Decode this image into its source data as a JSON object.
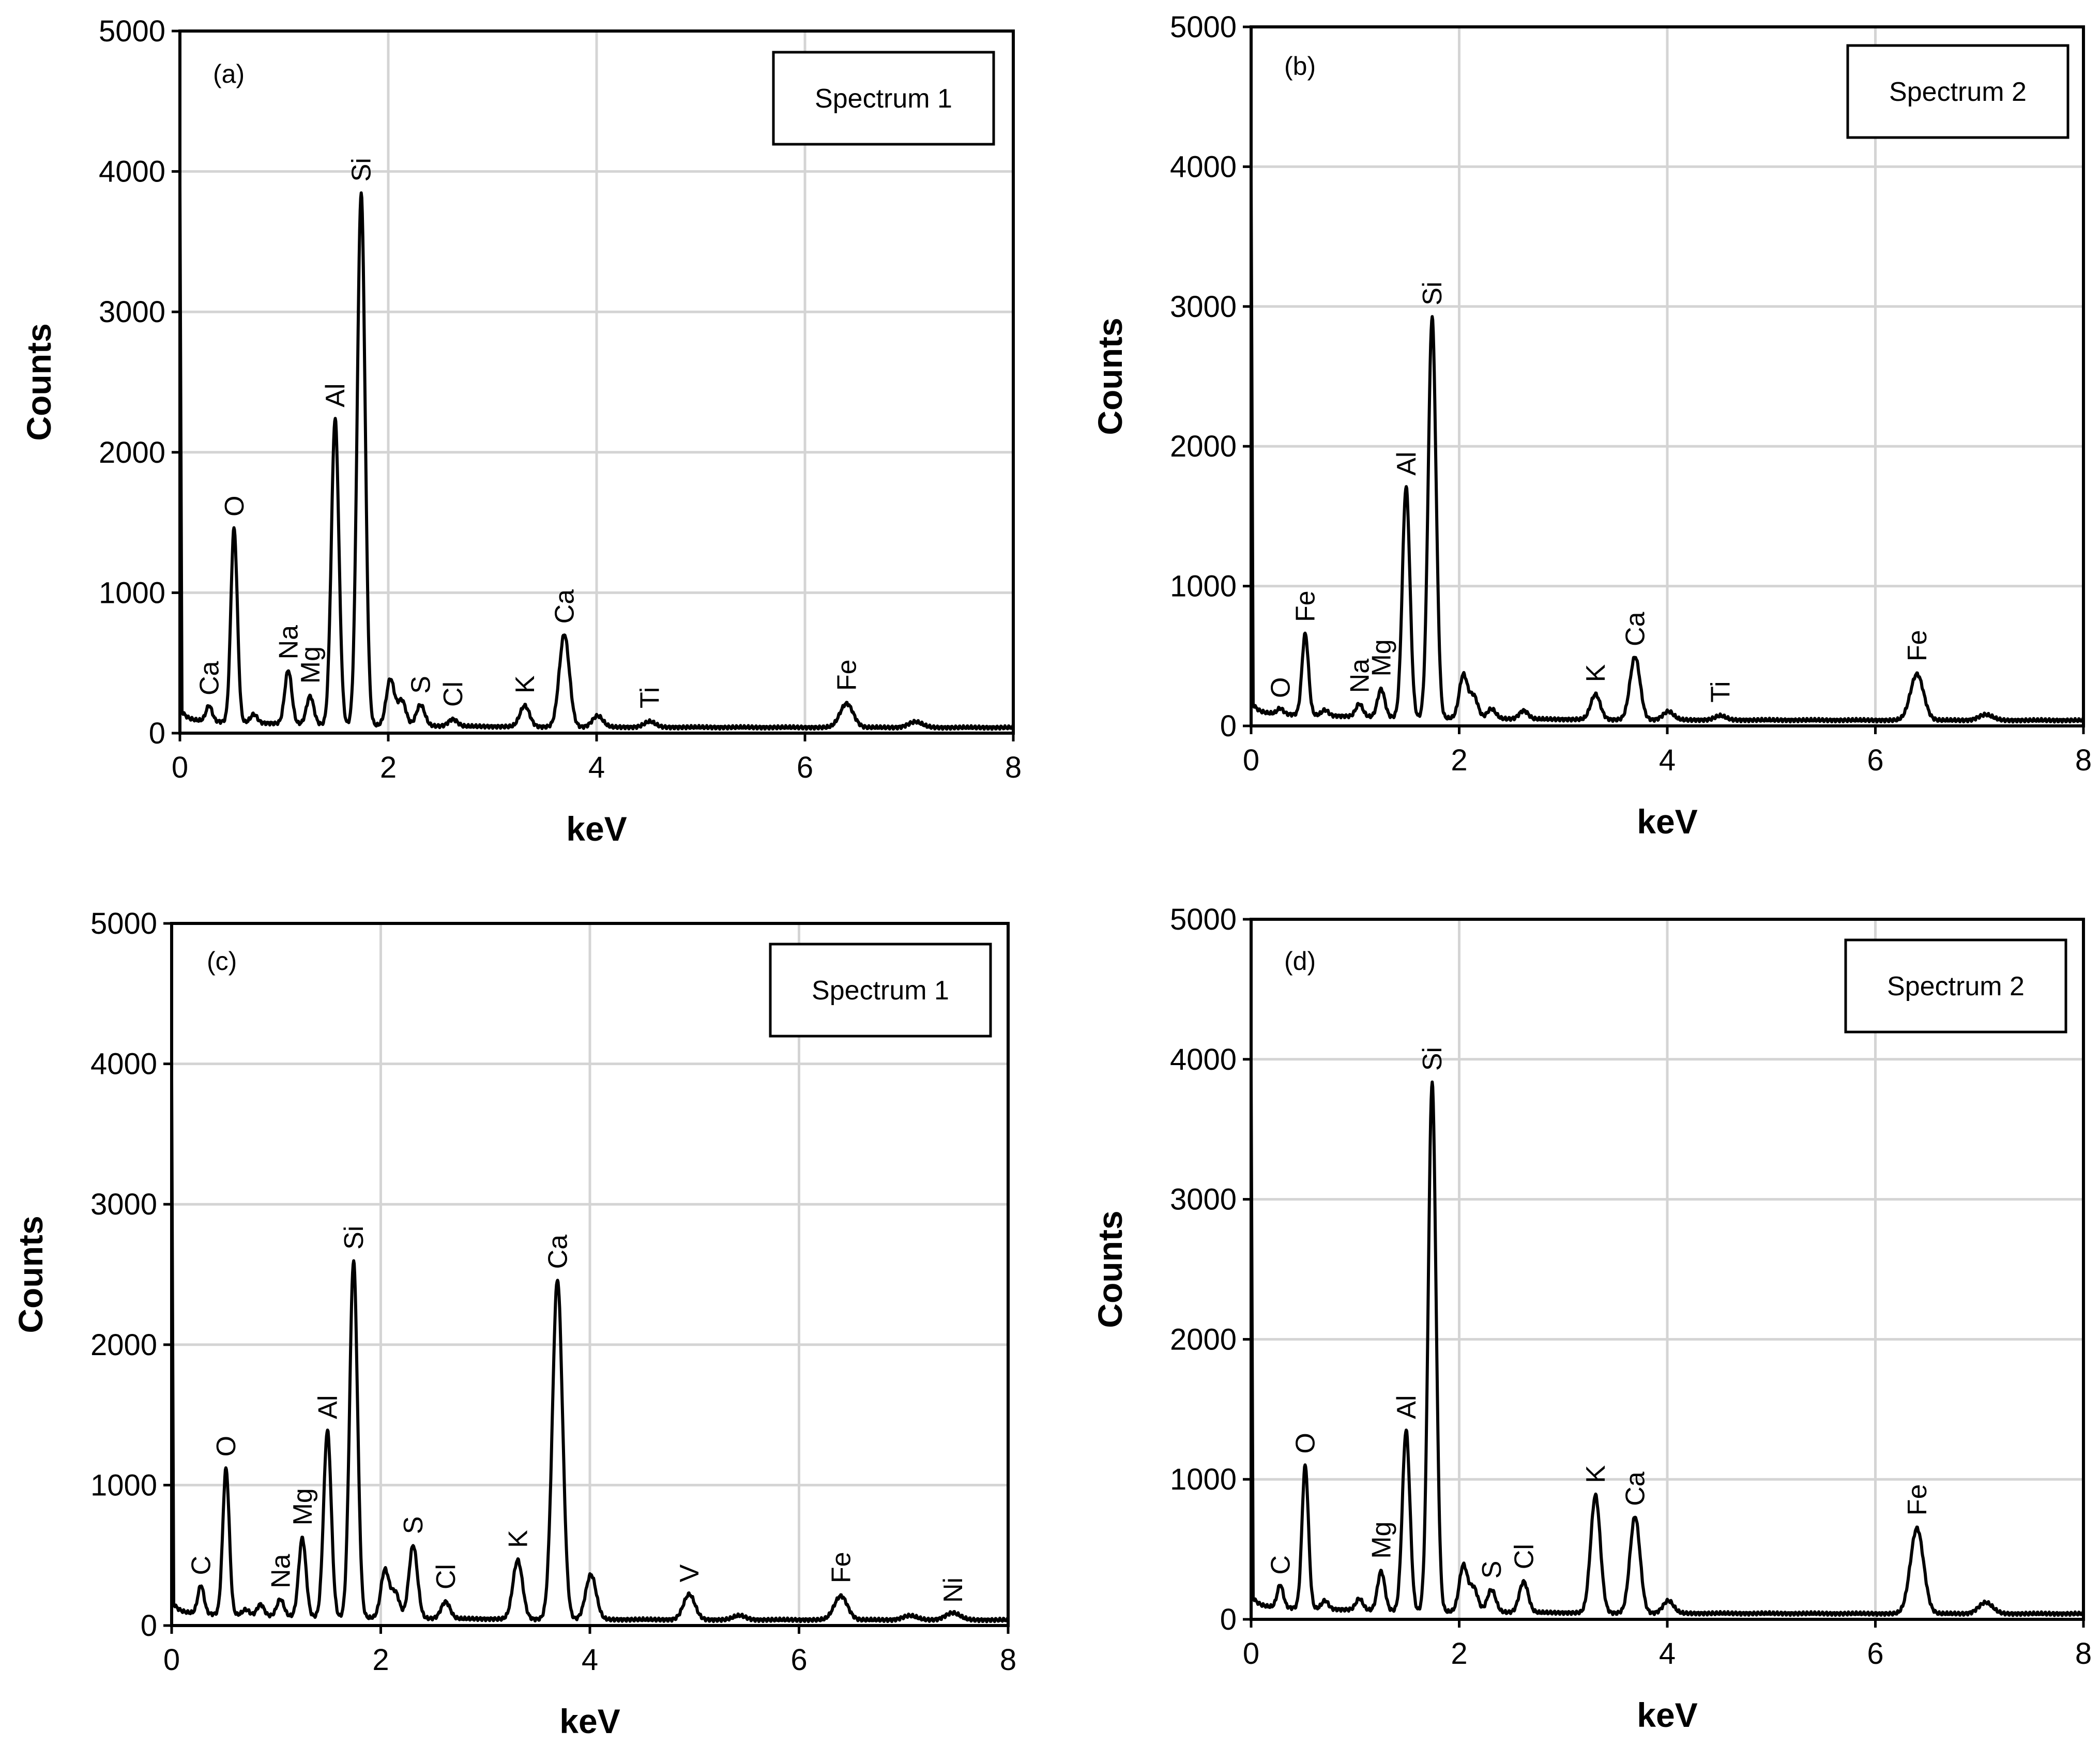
{
  "chart_data": [
    {
      "type": "line",
      "panel_label": "(a)",
      "legend": "Spectrum 1",
      "xlabel": "keV",
      "ylabel": "Counts",
      "xlim": [
        0,
        8
      ],
      "ylim": [
        0,
        5000
      ],
      "xticks": [
        "0",
        "2",
        "4",
        "6",
        "8"
      ],
      "yticks": [
        "0",
        "1000",
        "2000",
        "3000",
        "4000",
        "5000"
      ],
      "grid": true,
      "series": [
        {
          "name": "Spectrum 1",
          "peaks": [
            [
              0.28,
              110
            ],
            [
              0.52,
              1380
            ],
            [
              0.71,
              60
            ],
            [
              1.04,
              380
            ],
            [
              1.25,
              200
            ],
            [
              1.49,
              2180
            ],
            [
              1.74,
              3790
            ],
            [
              2.02,
              330
            ],
            [
              2.13,
              180
            ],
            [
              2.31,
              150
            ],
            [
              2.62,
              50
            ],
            [
              3.31,
              150
            ],
            [
              3.69,
              660
            ],
            [
              4.01,
              80
            ],
            [
              4.51,
              40
            ],
            [
              6.4,
              170
            ],
            [
              7.06,
              40
            ]
          ]
        }
      ],
      "annotations": [
        {
          "label": "Ca",
          "x": 0.28,
          "y": 110
        },
        {
          "label": "O",
          "x": 0.52,
          "y": 1380
        },
        {
          "label": "Na",
          "x": 1.04,
          "y": 380
        },
        {
          "label": "Mg",
          "x": 1.25,
          "y": 200
        },
        {
          "label": "Al",
          "x": 1.49,
          "y": 2180
        },
        {
          "label": "Si",
          "x": 1.74,
          "y": 3790
        },
        {
          "label": "S",
          "x": 2.31,
          "y": 150
        },
        {
          "label": "Cl",
          "x": 2.62,
          "y": 50
        },
        {
          "label": "K",
          "x": 3.31,
          "y": 150
        },
        {
          "label": "Ca",
          "x": 3.69,
          "y": 660
        },
        {
          "label": "Ti",
          "x": 4.51,
          "y": 40
        },
        {
          "label": "Fe",
          "x": 6.4,
          "y": 170
        }
      ]
    },
    {
      "type": "line",
      "panel_label": "(b)",
      "legend": "Spectrum 2",
      "xlabel": "keV",
      "ylabel": "Counts",
      "xlim": [
        0,
        8
      ],
      "ylim": [
        0,
        5000
      ],
      "xticks": [
        "0",
        "2",
        "4",
        "6",
        "8"
      ],
      "yticks": [
        "0",
        "1000",
        "2000",
        "3000",
        "4000",
        "5000"
      ],
      "grid": true,
      "series": [
        {
          "name": "Spectrum 2",
          "peaks": [
            [
              0.28,
              40
            ],
            [
              0.52,
              580
            ],
            [
              0.71,
              40
            ],
            [
              1.04,
              90
            ],
            [
              1.25,
              200
            ],
            [
              1.49,
              1650
            ],
            [
              1.74,
              2870
            ],
            [
              2.04,
              310
            ],
            [
              2.14,
              160
            ],
            [
              2.31,
              70
            ],
            [
              2.62,
              60
            ],
            [
              3.31,
              180
            ],
            [
              3.69,
              450
            ],
            [
              4.01,
              60
            ],
            [
              4.51,
              30
            ],
            [
              6.4,
              330
            ],
            [
              7.06,
              40
            ]
          ]
        }
      ],
      "annotations": [
        {
          "label": "O",
          "x": 0.28,
          "y": 40
        },
        {
          "label": "Fe",
          "x": 0.52,
          "y": 580
        },
        {
          "label": "Na",
          "x": 1.04,
          "y": 90
        },
        {
          "label": "Mg",
          "x": 1.25,
          "y": 200
        },
        {
          "label": "Al",
          "x": 1.49,
          "y": 1650
        },
        {
          "label": "Si",
          "x": 1.74,
          "y": 2870
        },
        {
          "label": "K",
          "x": 3.31,
          "y": 180
        },
        {
          "label": "Ca",
          "x": 3.69,
          "y": 450
        },
        {
          "label": "Ti",
          "x": 4.51,
          "y": 30
        },
        {
          "label": "Fe",
          "x": 6.4,
          "y": 330
        }
      ]
    },
    {
      "type": "line",
      "panel_label": "(c)",
      "legend": "Spectrum 1",
      "xlabel": "keV",
      "ylabel": "Counts",
      "xlim": [
        0,
        8
      ],
      "ylim": [
        0,
        5000
      ],
      "xticks": [
        "0",
        "2",
        "4",
        "6",
        "8"
      ],
      "yticks": [
        "0",
        "1000",
        "2000",
        "3000",
        "4000",
        "5000"
      ],
      "grid": true,
      "series": [
        {
          "name": "Spectrum 1",
          "peaks": [
            [
              0.28,
              200
            ],
            [
              0.52,
              1040
            ],
            [
              0.71,
              40
            ],
            [
              0.85,
              80
            ],
            [
              1.04,
              120
            ],
            [
              1.25,
              560
            ],
            [
              1.49,
              1330
            ],
            [
              1.74,
              2540
            ],
            [
              2.04,
              340
            ],
            [
              2.14,
              180
            ],
            [
              2.31,
              520
            ],
            [
              2.62,
              120
            ],
            [
              3.31,
              420
            ],
            [
              3.69,
              2420
            ],
            [
              4.01,
              320
            ],
            [
              4.95,
              180
            ],
            [
              5.43,
              30
            ],
            [
              6.4,
              170
            ],
            [
              7.06,
              30
            ],
            [
              7.47,
              50
            ]
          ]
        }
      ],
      "annotations": [
        {
          "label": "C",
          "x": 0.28,
          "y": 200
        },
        {
          "label": "O",
          "x": 0.52,
          "y": 1040
        },
        {
          "label": "Na",
          "x": 1.04,
          "y": 120
        },
        {
          "label": "Mg",
          "x": 1.25,
          "y": 560
        },
        {
          "label": "Al",
          "x": 1.49,
          "y": 1330
        },
        {
          "label": "Si",
          "x": 1.74,
          "y": 2540
        },
        {
          "label": "S",
          "x": 2.31,
          "y": 520
        },
        {
          "label": "Cl",
          "x": 2.62,
          "y": 120
        },
        {
          "label": "K",
          "x": 3.31,
          "y": 420
        },
        {
          "label": "Ca",
          "x": 3.69,
          "y": 2420
        },
        {
          "label": "V",
          "x": 4.95,
          "y": 180
        },
        {
          "label": "Fe",
          "x": 6.4,
          "y": 170
        },
        {
          "label": "Ni",
          "x": 7.47,
          "y": 50
        }
      ]
    },
    {
      "type": "line",
      "panel_label": "(d)",
      "legend": "Spectrum 2",
      "xlabel": "keV",
      "ylabel": "Counts",
      "xlim": [
        0,
        8
      ],
      "ylim": [
        0,
        5000
      ],
      "xticks": [
        "0",
        "2",
        "4",
        "6",
        "8"
      ],
      "yticks": [
        "0",
        "1000",
        "2000",
        "3000",
        "4000",
        "5000"
      ],
      "grid": true,
      "series": [
        {
          "name": "Spectrum 2",
          "peaks": [
            [
              0.28,
              160
            ],
            [
              0.52,
              1020
            ],
            [
              0.71,
              60
            ],
            [
              1.04,
              80
            ],
            [
              1.25,
              280
            ],
            [
              1.49,
              1290
            ],
            [
              1.74,
              3780
            ],
            [
              2.04,
              330
            ],
            [
              2.14,
              170
            ],
            [
              2.31,
              160
            ],
            [
              2.62,
              220
            ],
            [
              3.31,
              840
            ],
            [
              3.69,
              690
            ],
            [
              4.01,
              90
            ],
            [
              6.4,
              610
            ],
            [
              7.06,
              80
            ]
          ]
        }
      ],
      "annotations": [
        {
          "label": "C",
          "x": 0.28,
          "y": 160
        },
        {
          "label": "O",
          "x": 0.52,
          "y": 1020
        },
        {
          "label": "Mg",
          "x": 1.25,
          "y": 280
        },
        {
          "label": "Al",
          "x": 1.49,
          "y": 1290
        },
        {
          "label": "Si",
          "x": 1.74,
          "y": 3780
        },
        {
          "label": "S",
          "x": 2.31,
          "y": 160
        },
        {
          "label": "Cl",
          "x": 2.62,
          "y": 220
        },
        {
          "label": "K",
          "x": 3.31,
          "y": 840
        },
        {
          "label": "Ca",
          "x": 3.69,
          "y": 690
        },
        {
          "label": "Fe",
          "x": 6.4,
          "y": 610
        }
      ]
    }
  ]
}
